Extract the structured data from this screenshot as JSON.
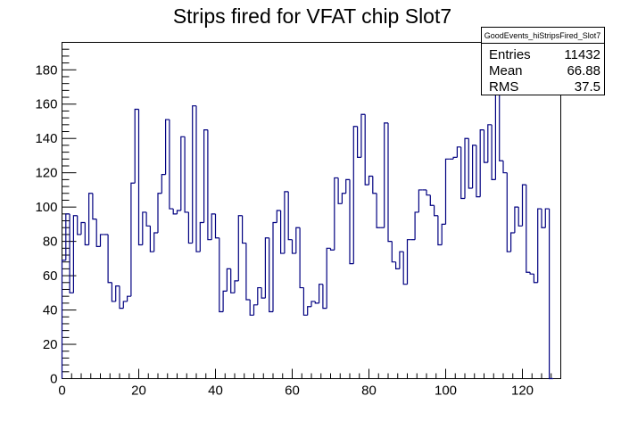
{
  "chart_data": {
    "type": "histogram",
    "title": "Strips fired for VFAT chip Slot7",
    "xlabel": "",
    "ylabel": "",
    "xlim": [
      0,
      130
    ],
    "ylim": [
      0,
      196
    ],
    "x_ticks": [
      0,
      20,
      40,
      60,
      80,
      100,
      120
    ],
    "y_ticks": [
      0,
      20,
      40,
      60,
      80,
      100,
      120,
      140,
      160,
      180
    ],
    "grid": false,
    "bin_width": 1,
    "line_color": "#000080",
    "values": [
      69,
      96,
      50,
      95,
      84,
      91,
      78,
      108,
      93,
      77,
      84,
      84,
      56,
      45,
      54,
      41,
      45,
      48,
      114,
      157,
      78,
      97,
      89,
      74,
      85,
      108,
      119,
      151,
      99,
      96,
      98,
      141,
      97,
      79,
      159,
      74,
      91,
      145,
      81,
      96,
      82,
      39,
      51,
      64,
      50,
      57,
      95,
      79,
      46,
      37,
      43,
      53,
      47,
      82,
      39,
      91,
      98,
      73,
      109,
      81,
      73,
      88,
      53,
      37,
      42,
      45,
      44,
      55,
      41,
      76,
      75,
      117,
      102,
      108,
      116,
      67,
      147,
      129,
      154,
      113,
      118,
      108,
      88,
      88,
      149,
      80,
      68,
      64,
      74,
      55,
      81,
      81,
      97,
      110,
      110,
      107,
      101,
      95,
      78,
      90,
      128,
      128,
      129,
      135,
      105,
      140,
      111,
      136,
      106,
      145,
      126,
      148,
      116,
      173,
      127,
      120,
      74,
      85,
      100,
      89,
      113,
      62,
      61,
      56,
      99,
      88,
      99,
      0
    ],
    "stats_box": {
      "name": "GoodEvents_hiStripsFired_Slot7",
      "rows": [
        {
          "label": "Entries",
          "value": "11432"
        },
        {
          "label": "Mean",
          "value": "66.88"
        },
        {
          "label": "RMS",
          "value": "37.5"
        }
      ]
    }
  }
}
